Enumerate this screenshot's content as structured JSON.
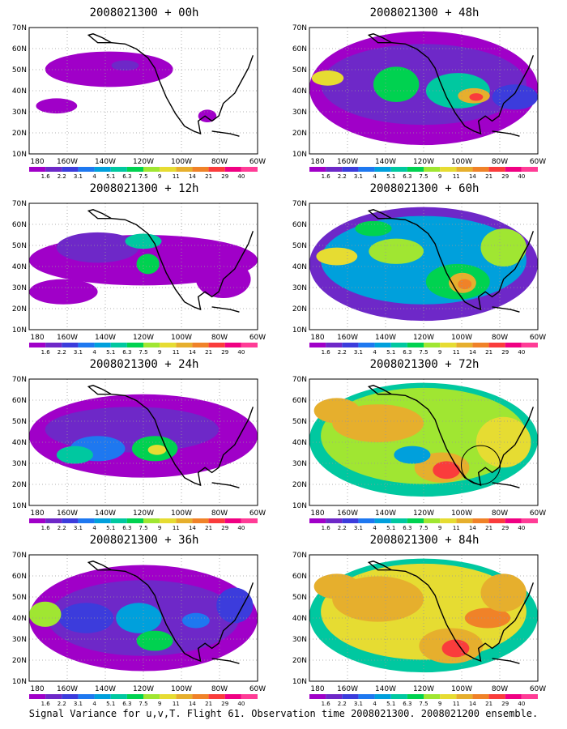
{
  "figure": {
    "caption": "Signal Variance for u,v,T. Flight 61. Observation time 2008021300. 2008021200 ensemble."
  },
  "axes": {
    "lat_labels": [
      "70N",
      "60N",
      "50N",
      "40N",
      "30N",
      "20N",
      "10N"
    ],
    "lon_labels": [
      "180",
      "160W",
      "140W",
      "120W",
      "100W",
      "80W",
      "60W"
    ]
  },
  "colorbar": {
    "labels": [
      "1.6",
      "2.2",
      "3.1",
      "4",
      "5.1",
      "6.3",
      "7.5",
      "9",
      "11",
      "14",
      "21",
      "29",
      "40"
    ],
    "colors": [
      "#a000c8",
      "#6e28c8",
      "#3c3cdc",
      "#1e78f0",
      "#00a0dc",
      "#00c8a0",
      "#00d250",
      "#a0e632",
      "#e6dc32",
      "#e6af2d",
      "#f08228",
      "#fa3c3c",
      "#f00082",
      "#ff3c96"
    ]
  },
  "panels": [
    {
      "title": "2008021300 + 00h",
      "col": 0,
      "row": 0
    },
    {
      "title": "2008021300 + 12h",
      "col": 0,
      "row": 1
    },
    {
      "title": "2008021300 + 24h",
      "col": 0,
      "row": 2
    },
    {
      "title": "2008021300 + 36h",
      "col": 0,
      "row": 3
    },
    {
      "title": "2008021300 + 48h",
      "col": 1,
      "row": 0
    },
    {
      "title": "2008021300 + 60h",
      "col": 1,
      "row": 1
    },
    {
      "title": "2008021300 + 72h",
      "col": 1,
      "row": 2
    },
    {
      "title": "2008021300 + 84h",
      "col": 1,
      "row": 3
    }
  ]
}
